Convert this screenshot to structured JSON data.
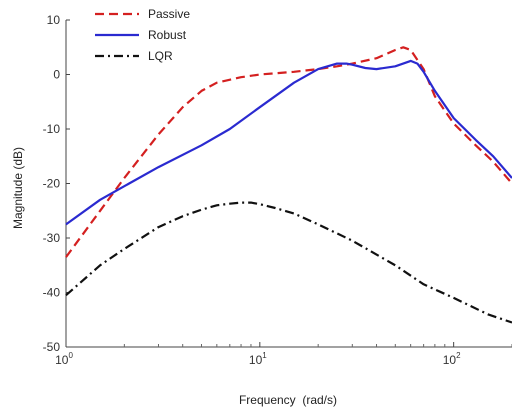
{
  "chart_data": {
    "type": "line",
    "xlabel": "Frequency  (rad/s)",
    "ylabel": "Magnitude (dB)",
    "xscale": "log",
    "xlim": [
      1,
      200
    ],
    "ylim": [
      -50,
      10
    ],
    "grid": false,
    "legend_position": "top-left",
    "x_ticks": [
      {
        "base": "10",
        "exp": "0"
      },
      {
        "base": "10",
        "exp": "1"
      },
      {
        "base": "10",
        "exp": "2"
      }
    ],
    "y_ticks": [
      "10",
      "0",
      "-10",
      "-20",
      "-30",
      "-40",
      "-50"
    ],
    "series": [
      {
        "name": "Passive",
        "color": "#d42020",
        "style": "dashed",
        "x": [
          1,
          1.5,
          2,
          3,
          4,
          5,
          6,
          8,
          10,
          15,
          20,
          25,
          30,
          40,
          50,
          55,
          60,
          70,
          80,
          100,
          130,
          160,
          200
        ],
        "y": [
          -33.5,
          -25,
          -19,
          -11,
          -6,
          -3,
          -1.5,
          -0.5,
          0,
          0.5,
          1,
          1.5,
          2,
          3,
          4.5,
          5,
          4.5,
          1,
          -4,
          -9,
          -13,
          -16,
          -20
        ]
      },
      {
        "name": "Robust",
        "color": "#2a2ad0",
        "style": "solid",
        "x": [
          1,
          1.5,
          2,
          3,
          5,
          7,
          10,
          15,
          20,
          25,
          28,
          30,
          35,
          40,
          50,
          60,
          65,
          70,
          80,
          100,
          130,
          160,
          200
        ],
        "y": [
          -27.5,
          -23,
          -20.5,
          -17,
          -13,
          -10,
          -6,
          -1.5,
          1,
          2,
          2,
          1.8,
          1.2,
          1,
          1.5,
          2.5,
          2,
          0.5,
          -3,
          -8,
          -12,
          -15,
          -19
        ]
      },
      {
        "name": "LQR",
        "color": "#111111",
        "style": "dashdot",
        "x": [
          1,
          1.5,
          2,
          3,
          4,
          5,
          6,
          7,
          8,
          9,
          10,
          12,
          15,
          20,
          30,
          50,
          70,
          100,
          150,
          200
        ],
        "y": [
          -40.5,
          -35,
          -32,
          -28,
          -26,
          -24.8,
          -24,
          -23.7,
          -23.5,
          -23.5,
          -23.8,
          -24.5,
          -25.5,
          -27.5,
          -30.5,
          -35,
          -38.5,
          -41,
          -44,
          -45.5
        ]
      }
    ]
  }
}
